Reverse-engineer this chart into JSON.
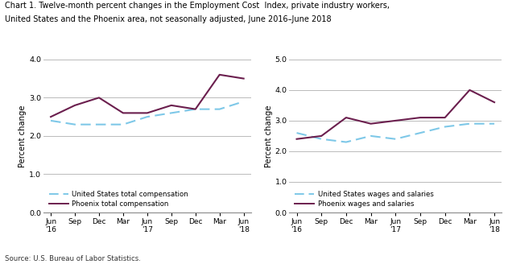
{
  "title_line1": "Chart 1. Twelve-month percent changes in the Employment Cost  Index, private industry workers,",
  "title_line2": "United States and the Phoenix area, not seasonally adjusted, June 2016–June 2018",
  "source": "Source: U.S. Bureau of Labor Statistics.",
  "x_labels": [
    "Jun\n'16",
    "Sep",
    "Dec",
    "Mar",
    "Jun\n'17",
    "Sep",
    "Dec",
    "Mar",
    "Jun\n'18"
  ],
  "left_chart": {
    "ylabel": "Percent change",
    "ylim": [
      0.0,
      4.0
    ],
    "yticks": [
      0.0,
      1.0,
      2.0,
      3.0,
      4.0
    ],
    "us_total_comp": [
      2.4,
      2.3,
      2.3,
      2.3,
      2.5,
      2.6,
      2.7,
      2.7,
      2.9
    ],
    "phoenix_total_comp": [
      2.5,
      2.8,
      3.0,
      2.6,
      2.6,
      2.8,
      2.7,
      3.6,
      3.5
    ],
    "legend1": "United States total compensation",
    "legend2": "Phoenix total compensation"
  },
  "right_chart": {
    "ylabel": "Percent change",
    "ylim": [
      0.0,
      5.0
    ],
    "yticks": [
      0.0,
      1.0,
      2.0,
      3.0,
      4.0,
      5.0
    ],
    "us_wages_sal": [
      2.6,
      2.4,
      2.3,
      2.5,
      2.4,
      2.6,
      2.8,
      2.9,
      2.9
    ],
    "phoenix_wages_sal": [
      2.4,
      2.5,
      3.1,
      2.9,
      3.0,
      3.1,
      3.1,
      4.0,
      3.6
    ],
    "legend1": "United States wages and salaries",
    "legend2": "Phoenix wages and salaries"
  },
  "us_color": "#7ec8e8",
  "phoenix_color": "#6b1f4e",
  "background_color": "#ffffff",
  "grid_color": "#b0b0b0"
}
